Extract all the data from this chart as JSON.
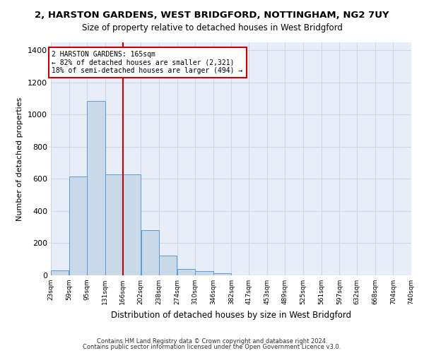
{
  "title": "2, HARSTON GARDENS, WEST BRIDGFORD, NOTTINGHAM, NG2 7UY",
  "subtitle": "Size of property relative to detached houses in West Bridgford",
  "xlabel": "Distribution of detached houses by size in West Bridgford",
  "ylabel": "Number of detached properties",
  "bin_edges": [
    23,
    59,
    95,
    131,
    166,
    202,
    238,
    274,
    310,
    346,
    382,
    417,
    453,
    489,
    525,
    561,
    597,
    632,
    668,
    704,
    740
  ],
  "bar_heights": [
    30,
    615,
    1085,
    630,
    630,
    280,
    125,
    40,
    25,
    15,
    0,
    0,
    0,
    0,
    0,
    0,
    0,
    0,
    0,
    0
  ],
  "bar_color": "#c9d9e8",
  "bar_edge_color": "#5b9bd5",
  "grid_color": "#d0d8e8",
  "background_color": "#e8eef8",
  "vline_x": 166,
  "vline_color": "#cc0000",
  "annotation_text": "2 HARSTON GARDENS: 165sqm\n← 82% of detached houses are smaller (2,321)\n18% of semi-detached houses are larger (494) →",
  "annotation_box_color": "#cc0000",
  "ylim": [
    0,
    1450
  ],
  "yticks": [
    0,
    200,
    400,
    600,
    800,
    1000,
    1200,
    1400
  ],
  "footnote1": "Contains HM Land Registry data © Crown copyright and database right 2024.",
  "footnote2": "Contains public sector information licensed under the Open Government Licence v3.0.",
  "title_fontsize": 9.5,
  "subtitle_fontsize": 8.5,
  "xlabel_fontsize": 8.5,
  "ylabel_fontsize": 8,
  "tick_labels": [
    "23sqm",
    "59sqm",
    "95sqm",
    "131sqm",
    "166sqm",
    "202sqm",
    "238sqm",
    "274sqm",
    "310sqm",
    "346sqm",
    "382sqm",
    "417sqm",
    "453sqm",
    "489sqm",
    "525sqm",
    "561sqm",
    "597sqm",
    "632sqm",
    "668sqm",
    "704sqm",
    "740sqm"
  ]
}
